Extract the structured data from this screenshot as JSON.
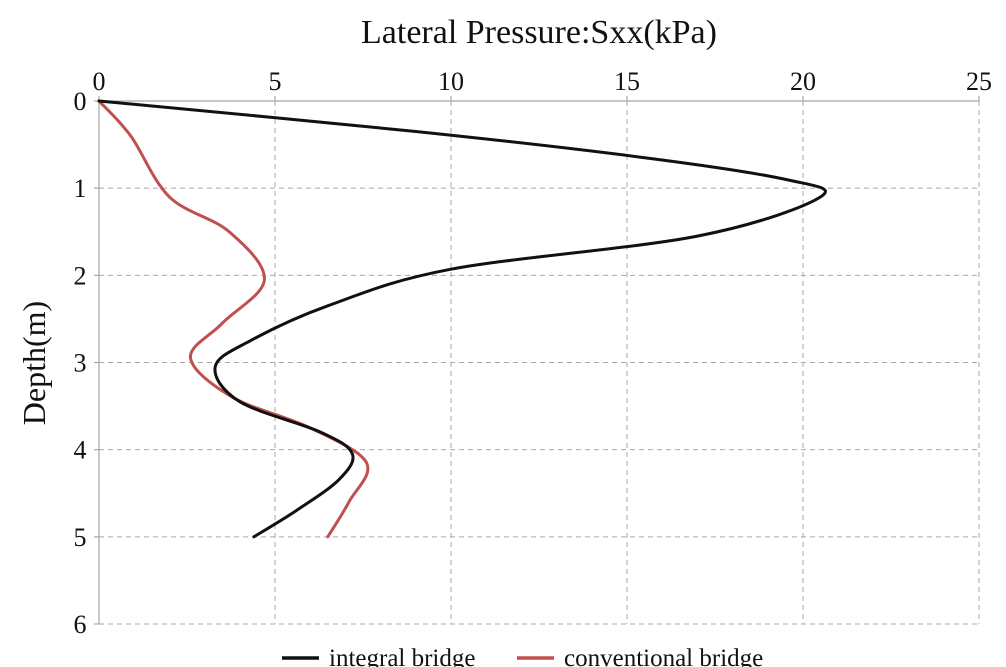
{
  "chart_data": {
    "type": "line",
    "title": "Lateral Pressure:Sxx(kPa)",
    "xlabel": "Lateral Pressure:Sxx(kPa)",
    "ylabel": "Depth(m)",
    "xlim": [
      0,
      25
    ],
    "ylim": [
      0,
      6
    ],
    "y_inverted": true,
    "x_axis_position": "top",
    "x_ticks": [
      0,
      5,
      10,
      15,
      20,
      25
    ],
    "y_ticks": [
      0,
      1,
      2,
      3,
      4,
      5,
      6
    ],
    "grid": true,
    "legend_position": "bottom",
    "series": [
      {
        "name": "integral bridge",
        "color": "#111111",
        "points": [
          {
            "x": 0.0,
            "y": 0.0
          },
          {
            "x": 9.0,
            "y": 0.35
          },
          {
            "x": 15.5,
            "y": 0.65
          },
          {
            "x": 19.5,
            "y": 0.9
          },
          {
            "x": 20.5,
            "y": 1.1
          },
          {
            "x": 17.0,
            "y": 1.55
          },
          {
            "x": 10.0,
            "y": 1.93
          },
          {
            "x": 6.5,
            "y": 2.35
          },
          {
            "x": 4.3,
            "y": 2.75
          },
          {
            "x": 3.3,
            "y": 3.05
          },
          {
            "x": 4.0,
            "y": 3.45
          },
          {
            "x": 6.3,
            "y": 3.8
          },
          {
            "x": 7.2,
            "y": 4.05
          },
          {
            "x": 6.8,
            "y": 4.35
          },
          {
            "x": 5.6,
            "y": 4.7
          },
          {
            "x": 4.4,
            "y": 5.0
          }
        ]
      },
      {
        "name": "conventional bridge",
        "color": "#c0504d",
        "points": [
          {
            "x": 0.0,
            "y": 0.0
          },
          {
            "x": 0.9,
            "y": 0.4
          },
          {
            "x": 2.0,
            "y": 1.1
          },
          {
            "x": 3.7,
            "y": 1.5
          },
          {
            "x": 4.7,
            "y": 2.05
          },
          {
            "x": 3.5,
            "y": 2.55
          },
          {
            "x": 2.6,
            "y": 2.95
          },
          {
            "x": 3.8,
            "y": 3.4
          },
          {
            "x": 6.0,
            "y": 3.75
          },
          {
            "x": 7.6,
            "y": 4.15
          },
          {
            "x": 7.1,
            "y": 4.6
          },
          {
            "x": 6.5,
            "y": 5.0
          }
        ]
      }
    ]
  }
}
